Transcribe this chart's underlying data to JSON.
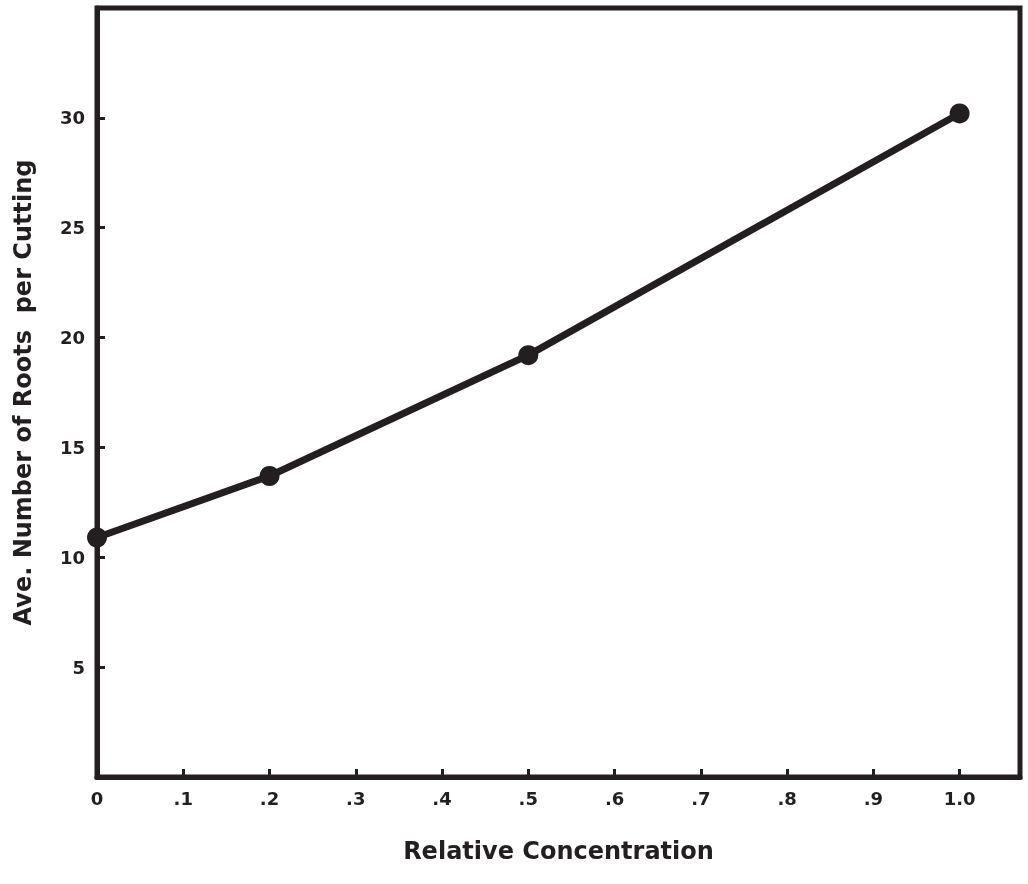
{
  "chart_data": {
    "type": "line",
    "xlabel": "Relative Concentration",
    "ylabel": "Ave. Number of Roots  per Cutting",
    "x": [
      0,
      0.2,
      0.5,
      1.0
    ],
    "series": [
      {
        "color": "#231f20",
        "values": [
          10.9,
          13.7,
          19.2,
          30.2
        ]
      }
    ],
    "xlim": [
      0,
      1.07
    ],
    "ylim": [
      0,
      35
    ],
    "xticks": [
      0,
      {
        "value": 0.1,
        "label": ".1"
      },
      {
        "value": 0.2,
        "label": ".2"
      },
      {
        "value": 0.3,
        "label": ".3"
      },
      {
        "value": 0.4,
        "label": ".4"
      },
      {
        "value": 0.5,
        "label": ".5"
      },
      {
        "value": 0.6,
        "label": ".6"
      },
      {
        "value": 0.7,
        "label": ".7"
      },
      {
        "value": 0.8,
        "label": ".8"
      },
      {
        "value": 0.9,
        "label": ".9"
      },
      {
        "value": 1.0,
        "label": "1.0"
      }
    ],
    "yticks": [
      5,
      10,
      15,
      20,
      25,
      30
    ],
    "grid": false,
    "marker": "circle",
    "line_style": "solid"
  }
}
